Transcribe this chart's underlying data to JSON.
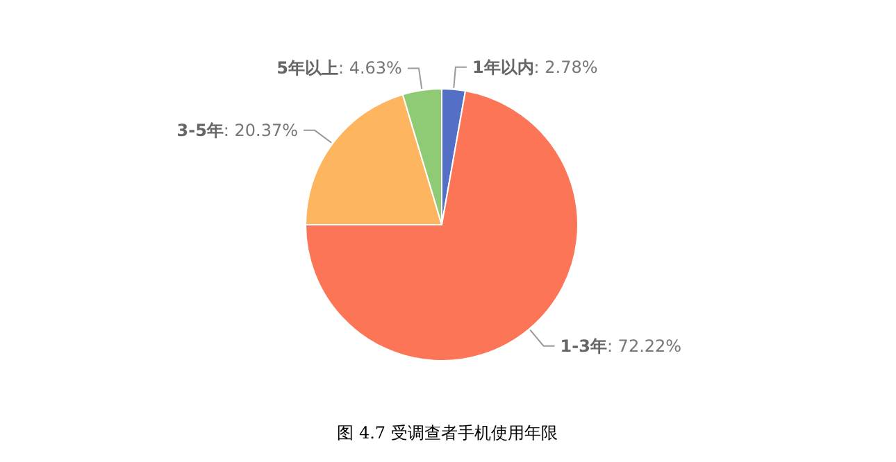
{
  "chart_data": {
    "type": "pie",
    "title": "图 4.7 受调查者手机使用年限",
    "categories": [
      "1年以内",
      "1-3年",
      "3-5年",
      "5年以上"
    ],
    "values": [
      2.78,
      72.22,
      20.37,
      4.63
    ],
    "value_labels": [
      ": 2.78%",
      ": 72.22%",
      ": 20.37%",
      ": 4.63%"
    ],
    "colors": [
      "#5470c6",
      "#fc7556",
      "#fdb55f",
      "#8fcb74"
    ]
  }
}
